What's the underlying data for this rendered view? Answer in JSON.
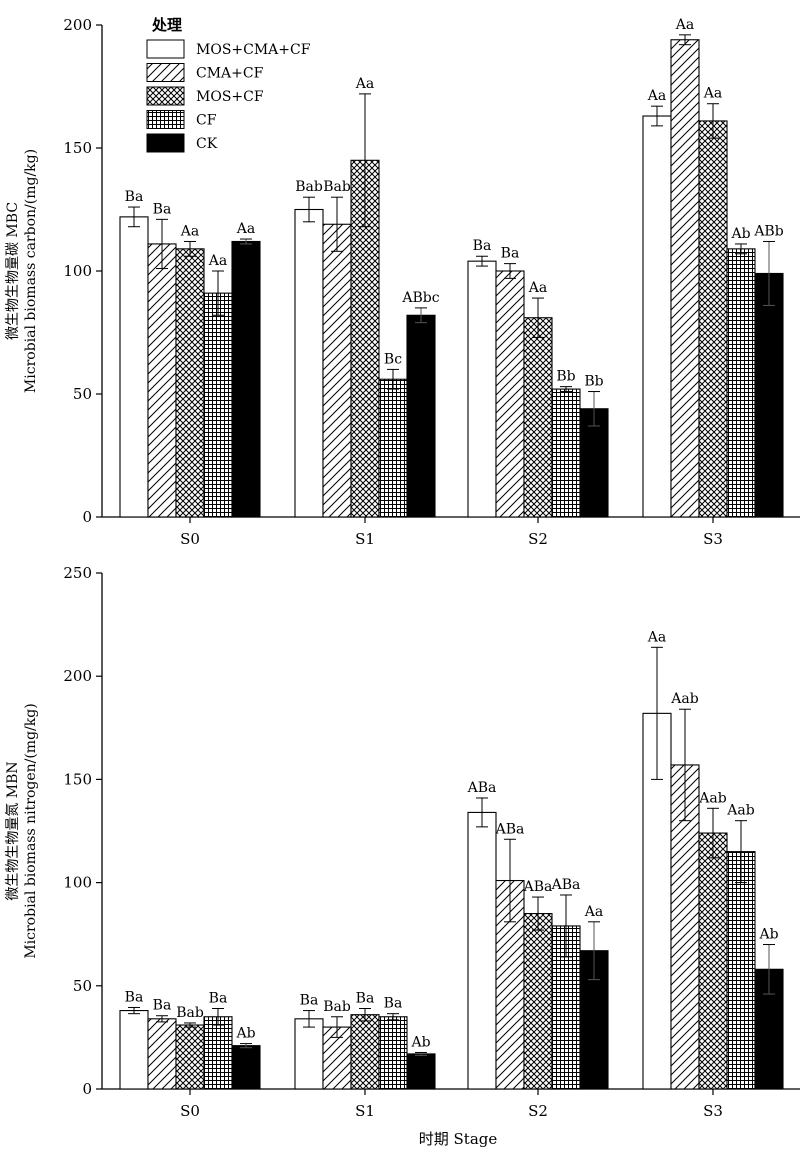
{
  "x_axis_label": "时期  Stage",
  "legend": {
    "title": "处理",
    "entries": [
      "MOS+CMA+CF",
      "CMA+CF",
      "MOS+CF",
      "CF",
      "CK"
    ]
  },
  "chart_data": [
    {
      "type": "bar",
      "ylabel_lines": [
        "微生物生物量碳  MBC",
        "Microbial  biomass carbon/(mg/kg)"
      ],
      "ylim": [
        0,
        200
      ],
      "yticks": [
        0,
        50,
        100,
        150,
        200
      ],
      "categories": [
        "S0",
        "S1",
        "S2",
        "S3"
      ],
      "series": [
        {
          "name": "MOS+CMA+CF",
          "values": [
            122,
            125,
            104,
            163
          ],
          "errors": [
            4,
            5,
            2,
            4
          ],
          "labels": [
            "Ba",
            "Bab",
            "Ba",
            "Aa"
          ]
        },
        {
          "name": "CMA+CF",
          "values": [
            111,
            119,
            100,
            194
          ],
          "errors": [
            10,
            11,
            3,
            2
          ],
          "labels": [
            "Ba",
            "Bab",
            "Ba",
            "Aa"
          ]
        },
        {
          "name": "MOS+CF",
          "values": [
            109,
            145,
            81,
            161
          ],
          "errors": [
            3,
            27,
            8,
            7
          ],
          "labels": [
            "Aa",
            "Aa",
            "Aa",
            "Aa"
          ]
        },
        {
          "name": "CF",
          "values": [
            91,
            56,
            52,
            109
          ],
          "errors": [
            9,
            4,
            1,
            2
          ],
          "labels": [
            "Aa",
            "Bc",
            "Bb",
            "Ab"
          ]
        },
        {
          "name": "CK",
          "values": [
            112,
            82,
            44,
            99
          ],
          "errors": [
            1,
            3,
            7,
            13
          ],
          "labels": [
            "Aa",
            "ABbc",
            "Bb",
            "ABb"
          ]
        }
      ]
    },
    {
      "type": "bar",
      "ylabel_lines": [
        "微生物生物量氮  MBN",
        "Microbial biomass nitrogen/(mg/kg)"
      ],
      "ylim": [
        0,
        250
      ],
      "yticks": [
        0,
        50,
        100,
        150,
        200,
        250
      ],
      "categories": [
        "S0",
        "S1",
        "S2",
        "S3"
      ],
      "series": [
        {
          "name": "MOS+CMA+CF",
          "values": [
            38,
            34,
            134,
            182
          ],
          "errors": [
            1.5,
            4,
            7,
            32
          ],
          "labels": [
            "Ba",
            "Ba",
            "ABa",
            "Aa"
          ]
        },
        {
          "name": "CMA+CF",
          "values": [
            34,
            30,
            101,
            157
          ],
          "errors": [
            1.5,
            5,
            20,
            27
          ],
          "labels": [
            "Ba",
            "Bab",
            "ABa",
            "Aab"
          ]
        },
        {
          "name": "MOS+CF",
          "values": [
            31,
            36,
            85,
            124
          ],
          "errors": [
            1,
            3,
            8,
            12
          ],
          "labels": [
            "Bab",
            "Ba",
            "ABa",
            "Aab"
          ]
        },
        {
          "name": "CF",
          "values": [
            35,
            35,
            79,
            115
          ],
          "errors": [
            4,
            1.5,
            15,
            15
          ],
          "labels": [
            "Ba",
            "Ba",
            "ABa",
            "Aab"
          ]
        },
        {
          "name": "CK",
          "values": [
            21,
            17,
            67,
            58
          ],
          "errors": [
            1,
            0.7,
            14,
            12
          ],
          "labels": [
            "Ab",
            "Ab",
            "Aa",
            "Ab"
          ]
        }
      ]
    }
  ]
}
